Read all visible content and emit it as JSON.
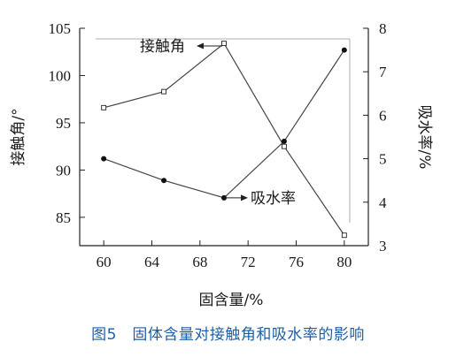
{
  "chart_data": {
    "type": "line",
    "x": [
      60,
      65,
      70,
      75,
      80
    ],
    "xlabel": "固含量/%",
    "x_ticks": [
      "60",
      "64",
      "68",
      "72",
      "76",
      "80"
    ],
    "xlim": [
      58,
      82
    ],
    "left_axis": {
      "label": "接触角/°",
      "ylim": [
        82,
        105
      ],
      "ticks": [
        "85",
        "90",
        "95",
        "100",
        "105"
      ]
    },
    "right_axis": {
      "label": "吸水率/%",
      "ylim": [
        3,
        8
      ],
      "ticks": [
        "3",
        "4",
        "5",
        "6",
        "7",
        "8"
      ]
    },
    "series": [
      {
        "name": "接触角",
        "axis": "left",
        "marker": "open-square",
        "values": [
          96.6,
          98.3,
          103.4,
          92.5,
          83.1
        ]
      },
      {
        "name": "吸水率",
        "axis": "right",
        "marker": "filled-circle",
        "values": [
          5.0,
          4.5,
          4.1,
          5.4,
          7.5
        ]
      }
    ],
    "annotations": [
      "接触角",
      "吸水率"
    ],
    "grid": false,
    "legend": "none"
  },
  "caption": "图5　固体含量对接触角和吸水率的影响",
  "colors": {
    "line": "#444444",
    "caption": "#1e5fa8"
  }
}
